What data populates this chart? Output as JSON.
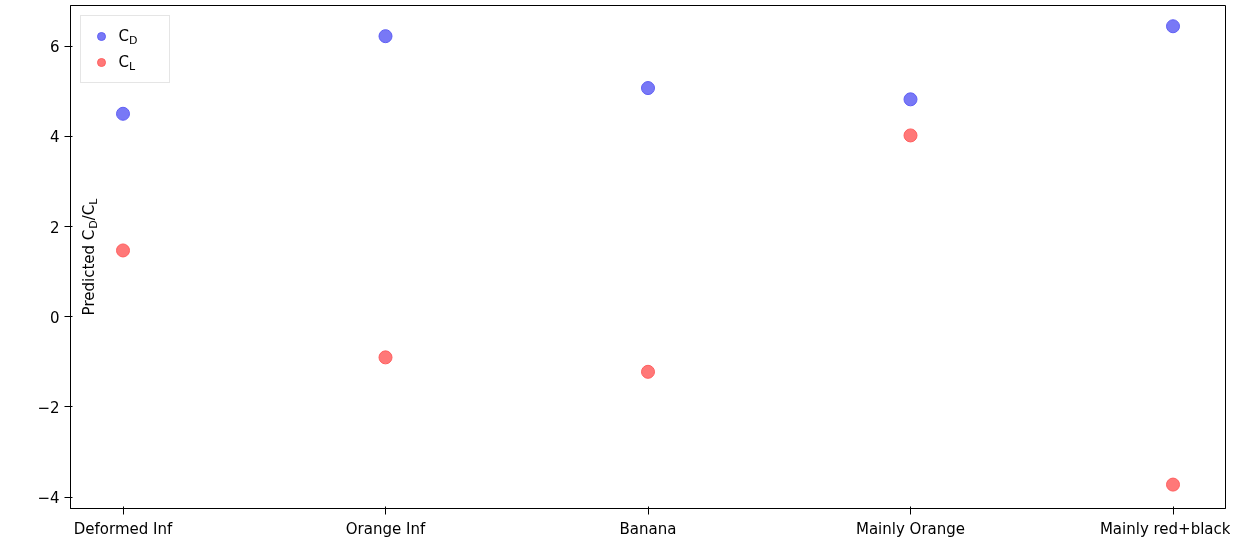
{
  "chart_data": {
    "type": "scatter",
    "ylabel": "Predicted C$_{D}$/C$_{L}$",
    "categories": [
      "Deformed Inf",
      "Orange Inf",
      "Banana",
      "Mainly Orange",
      "Mainly red+black"
    ],
    "series": [
      {
        "name": "C$_{D}$",
        "color": "#6060f5",
        "values": [
          4.5,
          6.22,
          5.07,
          4.82,
          6.44
        ]
      },
      {
        "name": "C$_{L}$",
        "color": "#ff6060",
        "values": [
          1.47,
          -0.9,
          -1.22,
          4.02,
          -3.72
        ]
      }
    ],
    "ylim": [
      -4.25,
      6.9
    ],
    "yticks": [
      {
        "value": -4,
        "label": "−4"
      },
      {
        "value": -2,
        "label": "−2"
      },
      0,
      2,
      4,
      6
    ],
    "legend": "top left",
    "grid": false,
    "marker": "circle"
  }
}
